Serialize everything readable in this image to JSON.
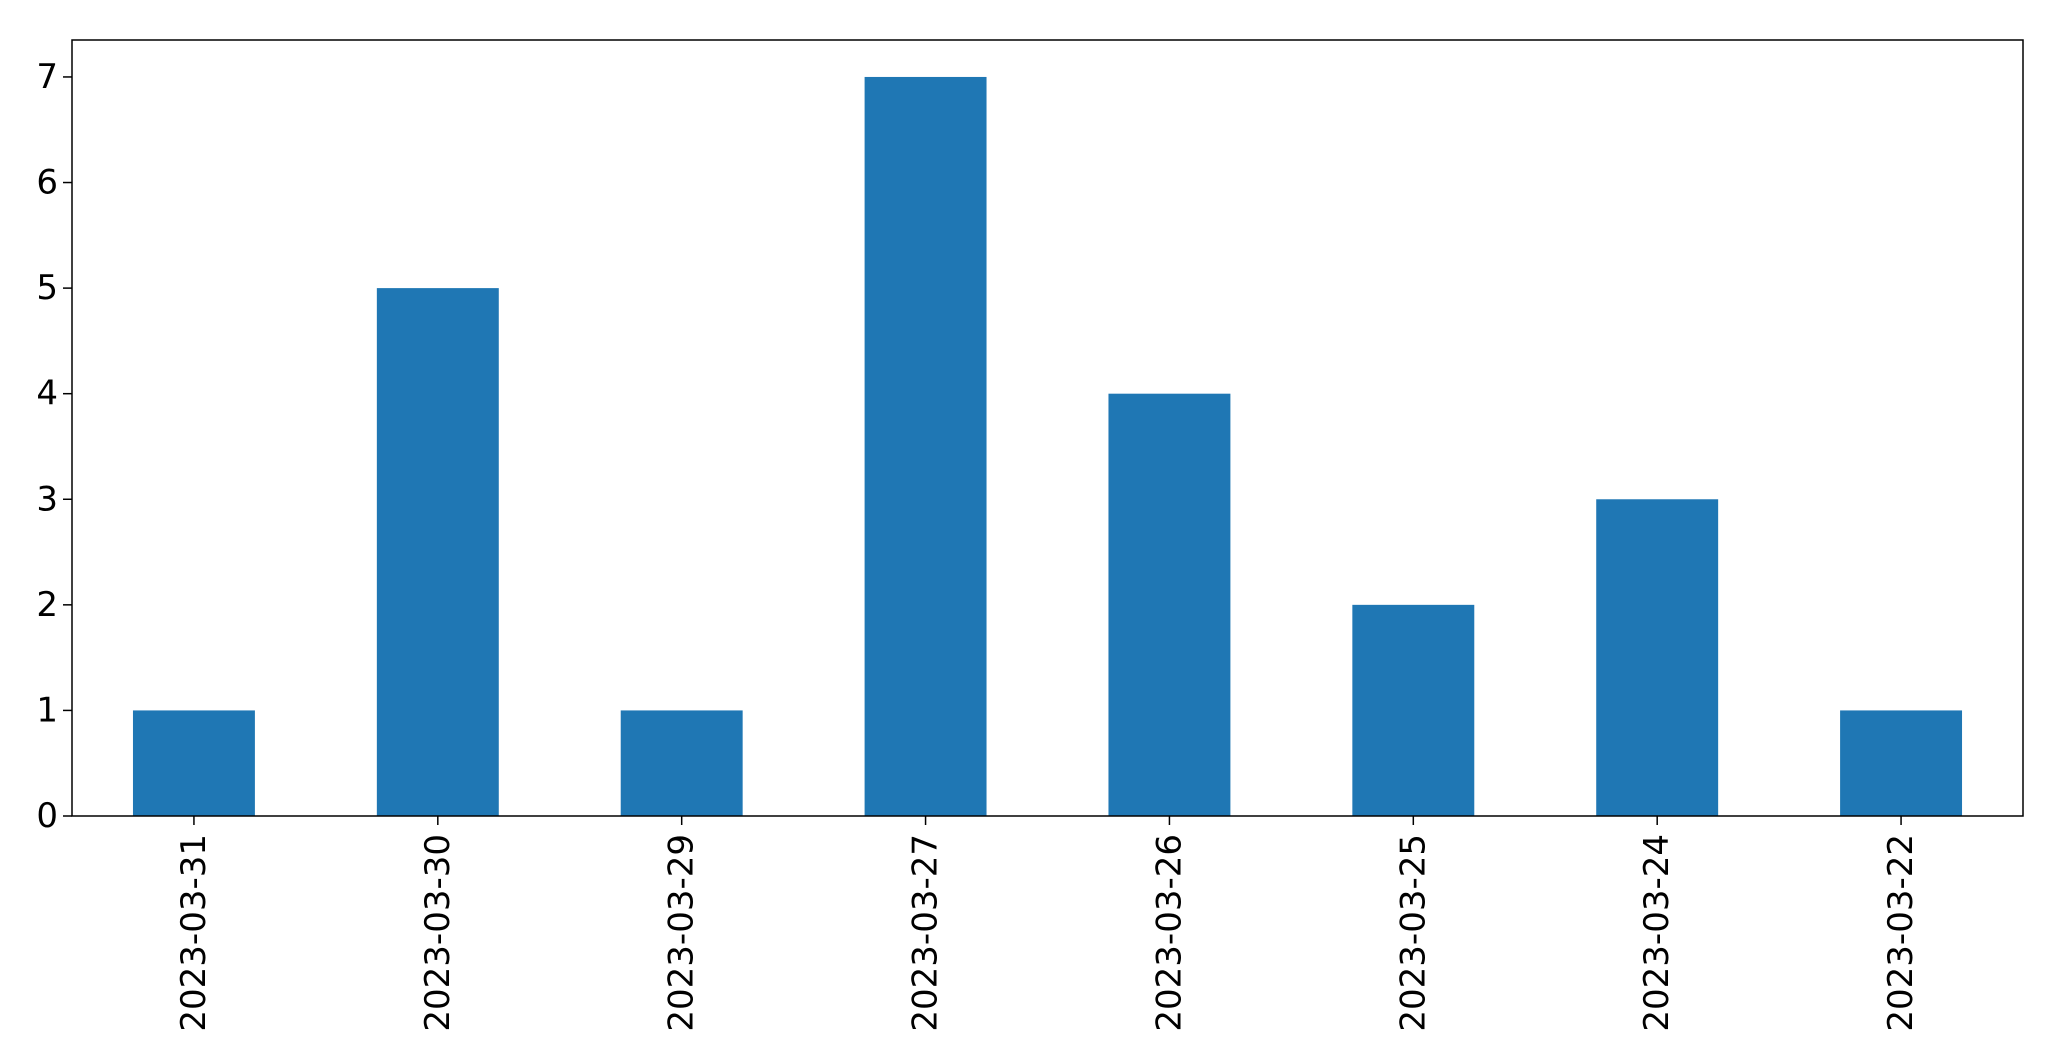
{
  "chart_data": {
    "type": "bar",
    "title": "",
    "xlabel": "",
    "ylabel": "",
    "categories": [
      "2023-03-31",
      "2023-03-30",
      "2023-03-29",
      "2023-03-27",
      "2023-03-26",
      "2023-03-25",
      "2023-03-24",
      "2023-03-22"
    ],
    "values": [
      1,
      5,
      1,
      7,
      4,
      2,
      3,
      1
    ],
    "yticks": [
      "0",
      "1",
      "2",
      "3",
      "4",
      "5",
      "6",
      "7"
    ],
    "ylim": [
      0,
      7.35
    ],
    "bar_color": "#1f77b4",
    "grid": false,
    "legend": "none"
  }
}
